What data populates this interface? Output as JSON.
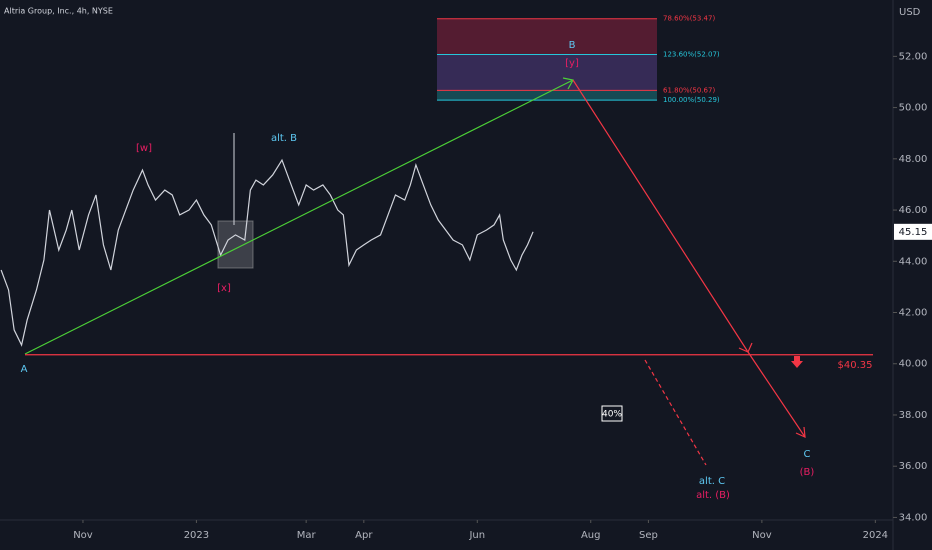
{
  "chart_data": {
    "type": "line",
    "title": "Altria Group, Inc., 4h, NYSE",
    "currency": "USD",
    "color": "#d1d4dc",
    "xlim": [
      -13.6,
      466.5
    ],
    "ylim": [
      33.9,
      54.2
    ],
    "xticks": [
      {
        "value": 31,
        "label": "Nov"
      },
      {
        "value": 92,
        "label": "2023"
      },
      {
        "value": 151,
        "label": "Mar"
      },
      {
        "value": 182,
        "label": "Apr"
      },
      {
        "value": 243,
        "label": "Jun"
      },
      {
        "value": 304,
        "label": "Aug"
      },
      {
        "value": 335,
        "label": "Sep"
      },
      {
        "value": 396,
        "label": "Nov"
      },
      {
        "value": 457,
        "label": "2024"
      }
    ],
    "yticks": [
      {
        "value": 34,
        "label": "34.00"
      },
      {
        "value": 36,
        "label": "36.00"
      },
      {
        "value": 38,
        "label": "38.00"
      },
      {
        "value": 40,
        "label": "40.00"
      },
      {
        "value": 42,
        "label": "42.00"
      },
      {
        "value": 44,
        "label": "44.00"
      },
      {
        "value": 46,
        "label": "46.00"
      },
      {
        "value": 48,
        "label": "48.00"
      },
      {
        "value": 50,
        "label": "50.00"
      },
      {
        "value": 52,
        "label": "52.00"
      }
    ],
    "x": [
      -13,
      -9,
      -6,
      -2,
      1,
      6,
      10,
      13,
      18,
      22,
      25,
      29,
      34,
      38,
      42,
      46,
      50,
      54,
      58,
      63,
      66,
      70,
      75,
      79,
      83,
      88,
      92,
      96,
      100,
      105,
      109,
      113,
      118,
      121,
      124,
      128,
      133,
      138,
      142,
      147,
      151,
      155,
      160,
      164,
      168,
      171,
      174,
      178,
      182,
      186,
      191,
      195,
      199,
      204,
      207,
      210,
      213,
      218,
      222,
      226,
      230,
      235,
      239,
      243,
      248,
      252,
      255,
      257,
      261,
      264,
      267,
      270,
      273
    ],
    "values": [
      43.66,
      42.88,
      41.32,
      40.73,
      41.71,
      42.88,
      44.05,
      46.0,
      44.44,
      45.22,
      46.0,
      44.44,
      45.81,
      46.59,
      44.64,
      43.66,
      45.22,
      46.0,
      46.78,
      47.56,
      46.98,
      46.39,
      46.78,
      46.59,
      45.81,
      46.0,
      46.39,
      45.81,
      45.42,
      44.24,
      44.83,
      45.03,
      44.83,
      46.78,
      47.17,
      46.98,
      47.37,
      47.95,
      47.17,
      46.2,
      46.98,
      46.78,
      46.98,
      46.59,
      46.0,
      45.81,
      43.85,
      44.44,
      44.64,
      44.83,
      45.03,
      45.81,
      46.59,
      46.39,
      46.98,
      47.76,
      47.17,
      46.2,
      45.61,
      45.22,
      44.83,
      44.64,
      44.05,
      45.03,
      45.22,
      45.42,
      45.81,
      44.83,
      44.05,
      43.66,
      44.24,
      44.64,
      45.15
    ],
    "last_price": {
      "value": 45.15,
      "label": "45.15"
    },
    "target": {
      "value": 40.35,
      "label": "$40.35"
    },
    "fib_levels": [
      {
        "value": 53.47,
        "label": "78.60%(53.47)",
        "color": "#f23645"
      },
      {
        "value": 52.07,
        "label": "123.60%(52.07)",
        "color": "#26c6da"
      },
      {
        "value": 50.67,
        "label": "61.80%(50.67)",
        "color": "#f23645"
      },
      {
        "value": 50.29,
        "label": "100.00%(50.29)",
        "color": "#26c6da"
      }
    ],
    "annotations": {
      "a": "A",
      "w": "[w]",
      "x": "[x]",
      "alt_b": "alt. B",
      "b": "B",
      "y": "[y]",
      "c": "C",
      "paren_b": "(B)",
      "alt_c": "alt. C",
      "alt_paren_b": "alt. (B)",
      "probability": "40%"
    }
  }
}
